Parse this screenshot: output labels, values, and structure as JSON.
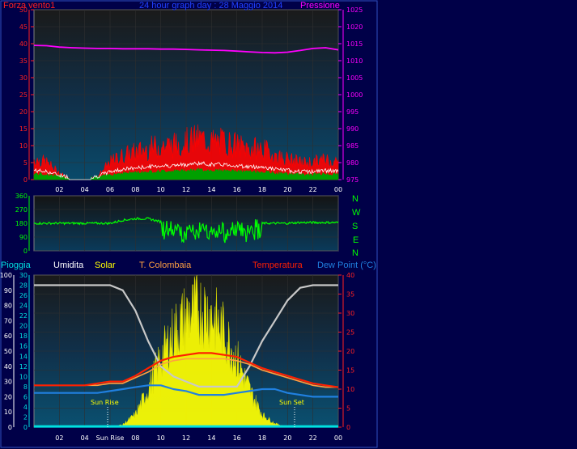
{
  "header": {
    "wind_label": "Forza vento1",
    "title": "24 hour graph day : 28 Maggio 2014",
    "pressure_label": "Pressione"
  },
  "compass": [
    "N",
    "W",
    "S",
    "E",
    "N"
  ],
  "legend": {
    "rain": "Pioggia",
    "humidity": "Umidita",
    "solar": "Solar",
    "tcolombaia": "T. Colombaia",
    "temperature": "Temperatura",
    "dewpoint": "Dew Point (°C)"
  },
  "annotations": {
    "sunrise": "Sun Rise",
    "sunset": "Sun Set"
  },
  "colors": {
    "wind": "#ff0000",
    "gust": "#ffffff",
    "avg": "#00a000",
    "pressure": "#ff00ff",
    "direction": "#00ff00",
    "humidity": "#c8c8c8",
    "solar": "#ffff00",
    "temperature": "#ff2000",
    "tcolombaia": "#ffa040",
    "dewpoint": "#2080e0",
    "rain": "#00e0e0"
  },
  "chart_data": [
    {
      "type": "line",
      "title": "24 hour graph day : 28 Maggio 2014",
      "x_ticks": [
        "02",
        "04",
        "06",
        "08",
        "10",
        "12",
        "14",
        "16",
        "18",
        "20",
        "22",
        "00"
      ],
      "y_left_label": "Forza vento1",
      "y_left_ticks": [
        "0",
        "5",
        "10",
        "15",
        "20",
        "25",
        "30",
        "35",
        "40",
        "45",
        "50"
      ],
      "y_left_range": [
        0,
        50
      ],
      "y_right_label": "Pressione",
      "y_right_ticks": [
        "975",
        "980",
        "985",
        "990",
        "995",
        "1000",
        "1005",
        "1010",
        "1015",
        "1020",
        "1025"
      ],
      "y_right_range": [
        975,
        1025
      ],
      "x_hours": [
        0,
        1,
        2,
        3,
        4,
        5,
        6,
        7,
        8,
        9,
        10,
        11,
        12,
        13,
        14,
        15,
        16,
        17,
        18,
        19,
        20,
        21,
        22,
        23,
        24
      ],
      "series": [
        {
          "name": "Forza vento1",
          "axis": "left",
          "values": [
            6,
            5,
            2,
            0,
            0,
            1,
            5,
            7,
            8,
            9,
            10,
            10,
            11,
            12,
            11,
            11,
            10,
            9,
            9,
            7,
            6,
            5,
            5,
            6,
            5
          ]
        },
        {
          "name": "Pressione",
          "axis": "right",
          "values": [
            1014.5,
            1014.4,
            1014.0,
            1013.8,
            1013.7,
            1013.6,
            1013.6,
            1013.5,
            1013.5,
            1013.5,
            1013.4,
            1013.4,
            1013.3,
            1013.2,
            1013.1,
            1013.0,
            1012.8,
            1012.6,
            1012.4,
            1012.3,
            1012.5,
            1013.0,
            1013.6,
            1013.8,
            1013.2
          ]
        }
      ]
    },
    {
      "type": "scatter",
      "y_ticks": [
        "0",
        "90",
        "180",
        "270",
        "360"
      ],
      "y_range": [
        0,
        360
      ],
      "x_ticks": [
        "02",
        "04",
        "06",
        "08",
        "10",
        "12",
        "14",
        "16",
        "18",
        "20",
        "22",
        "00"
      ],
      "x_hours": [
        0,
        1,
        2,
        3,
        4,
        5,
        6,
        7,
        8,
        9,
        10,
        11,
        12,
        13,
        14,
        15,
        16,
        17,
        18,
        19,
        20,
        21,
        22,
        23,
        24
      ],
      "series": [
        {
          "name": "direction",
          "values": [
            180,
            180,
            180,
            180,
            180,
            180,
            180,
            200,
            210,
            210,
            190,
            170,
            165,
            165,
            170,
            165,
            165,
            180,
            180,
            180,
            180,
            185,
            185,
            185,
            185
          ]
        }
      ]
    },
    {
      "type": "line",
      "x_ticks": [
        "02",
        "04",
        "Sun Rise",
        "08",
        "10",
        "12",
        "14",
        "16",
        "18",
        "20",
        "22",
        "00"
      ],
      "y_rain_label": "Pioggia",
      "y_rain_ticks": [
        "0",
        "10",
        "20",
        "30",
        "40",
        "50",
        "60",
        "70",
        "80",
        "90",
        "100"
      ],
      "y_rain_range": [
        0,
        100
      ],
      "y_humidity_ticks": [
        "0",
        "2",
        "4",
        "6",
        "8",
        "10",
        "12",
        "14",
        "16",
        "18",
        "20",
        "22",
        "24",
        "26",
        "28",
        "30"
      ],
      "y_humidity_range": [
        0,
        30
      ],
      "y_temp_label": "Temperatura",
      "y_temp_ticks": [
        "0",
        "5",
        "10",
        "15",
        "20",
        "25",
        "30",
        "35",
        "40"
      ],
      "y_temp_range": [
        0,
        40
      ],
      "x_hours": [
        0,
        1,
        2,
        3,
        4,
        5,
        6,
        7,
        8,
        9,
        10,
        11,
        12,
        13,
        14,
        15,
        16,
        17,
        18,
        19,
        20,
        21,
        22,
        23,
        24
      ],
      "series": [
        {
          "name": "Umidita",
          "axis": "humidity",
          "values": [
            28,
            28,
            28,
            28,
            28,
            28,
            28,
            27,
            23,
            17,
            12,
            10,
            9,
            8,
            8,
            8,
            8,
            12,
            17,
            21,
            25,
            27.5,
            28,
            28,
            28
          ]
        },
        {
          "name": "Temperatura",
          "axis": "temp",
          "values": [
            11,
            11,
            11,
            11,
            11,
            11.5,
            12,
            12,
            13.5,
            15.5,
            17.5,
            18.5,
            19,
            19.5,
            19.5,
            19,
            18.5,
            17,
            15.5,
            14.5,
            13.5,
            12.5,
            11.5,
            11,
            10.5
          ]
        },
        {
          "name": "T. Colombaia",
          "axis": "temp",
          "values": [
            11,
            11,
            11,
            11,
            11,
            11,
            11.5,
            11.5,
            13,
            14.5,
            16.5,
            17.5,
            18,
            18,
            18,
            18,
            17.5,
            16.5,
            15,
            14,
            13,
            12,
            11,
            10.5,
            10.5
          ]
        },
        {
          "name": "Dew Point (°C)",
          "axis": "temp",
          "values": [
            9,
            9,
            9,
            9,
            9,
            9,
            9.5,
            10,
            10.5,
            11,
            11,
            10,
            9.5,
            8.5,
            8.5,
            8.5,
            9,
            9.5,
            10,
            10,
            9,
            8.5,
            8,
            8,
            8
          ]
        },
        {
          "name": "Solar",
          "axis": "rain",
          "values": [
            0,
            0,
            0,
            0,
            0,
            0,
            0,
            2,
            10,
            30,
            55,
            75,
            88,
            95,
            90,
            75,
            55,
            30,
            10,
            3,
            0,
            0,
            0,
            0,
            0
          ]
        },
        {
          "name": "Pioggia",
          "axis": "rain",
          "values": [
            0,
            0,
            0,
            0,
            0,
            0,
            0,
            0,
            0,
            0,
            0,
            0,
            0,
            0,
            0,
            0,
            0,
            0,
            0,
            0,
            0,
            0,
            0,
            0,
            0
          ]
        }
      ]
    }
  ]
}
